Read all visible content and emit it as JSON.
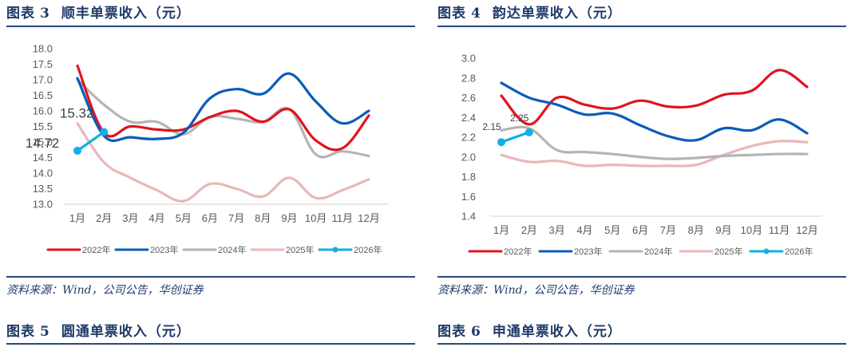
{
  "figures": [
    {
      "label": "图表",
      "number": "3",
      "title": "顺丰单票收入（元）",
      "source": "资料来源：Wind，公司公告，华创证券"
    },
    {
      "label": "图表",
      "number": "4",
      "title": "韵达单票收入（元）",
      "source": "资料来源：Wind，公司公告，华创证券"
    }
  ],
  "next_figures": [
    {
      "label": "图表",
      "number": "5",
      "title": "圆通单票收入（元）"
    },
    {
      "label": "图表",
      "number": "6",
      "title": "申通单票收入（元）"
    }
  ],
  "colors": {
    "2022年": "#e0141e",
    "2023年": "#0a5cb8",
    "2024年": "#b4b4b4",
    "2025年": "#e8b8b8",
    "2026年": "#12aee8",
    "title": "#1f3a68",
    "rule": "#2b4a7a"
  },
  "chart_data": [
    {
      "type": "line",
      "title": "顺丰单票收入（元）",
      "categories": [
        "1月",
        "2月",
        "3月",
        "4月",
        "5月",
        "6月",
        "7月",
        "8月",
        "9月",
        "10月",
        "11月",
        "12月"
      ],
      "ylim": [
        13.0,
        18.0
      ],
      "yticks": [
        "18.0",
        "17.5",
        "17.0",
        "16.5",
        "16.0",
        "15.5",
        "15.0",
        "14.5",
        "14.0",
        "13.5",
        "13.0"
      ],
      "legend_position": "bottom",
      "grid": false,
      "series": [
        {
          "name": "2022年",
          "values": [
            17.45,
            15.3,
            15.5,
            15.4,
            15.4,
            15.8,
            16.0,
            15.65,
            16.05,
            15.05,
            14.8,
            15.85
          ]
        },
        {
          "name": "2023年",
          "values": [
            17.05,
            15.2,
            15.15,
            15.1,
            15.3,
            16.4,
            16.7,
            16.55,
            17.2,
            16.3,
            15.6,
            16.0
          ]
        },
        {
          "name": "2024年",
          "values": [
            17.0,
            16.2,
            15.65,
            15.65,
            15.25,
            15.8,
            15.75,
            15.65,
            16.05,
            14.6,
            14.7,
            14.55
          ]
        },
        {
          "name": "2025年",
          "values": [
            15.6,
            14.35,
            13.85,
            13.45,
            13.1,
            13.65,
            13.5,
            13.25,
            13.85,
            13.2,
            13.45,
            13.8
          ]
        },
        {
          "name": "2026年",
          "values": [
            14.72,
            15.32
          ],
          "data_labels": [
            "14.72",
            "15.32"
          ],
          "markers": true
        }
      ]
    },
    {
      "type": "line",
      "title": "韵达单票收入（元）",
      "categories": [
        "1月",
        "2月",
        "3月",
        "4月",
        "5月",
        "6月",
        "7月",
        "8月",
        "9月",
        "10月",
        "11月",
        "12月"
      ],
      "ylim": [
        1.4,
        3.0
      ],
      "yticks": [
        "3.0",
        "2.8",
        "2.6",
        "2.4",
        "2.2",
        "2.0",
        "1.8",
        "1.6",
        "1.4"
      ],
      "legend_position": "bottom",
      "grid": false,
      "series": [
        {
          "name": "2022年",
          "values": [
            2.62,
            2.33,
            2.6,
            2.53,
            2.49,
            2.57,
            2.51,
            2.52,
            2.63,
            2.67,
            2.88,
            2.71
          ]
        },
        {
          "name": "2023年",
          "values": [
            2.75,
            2.6,
            2.53,
            2.43,
            2.44,
            2.32,
            2.21,
            2.17,
            2.29,
            2.27,
            2.38,
            2.24
          ]
        },
        {
          "name": "2024年",
          "values": [
            2.27,
            2.29,
            2.07,
            2.05,
            2.03,
            2.0,
            1.98,
            1.99,
            2.01,
            2.02,
            2.03,
            2.03
          ]
        },
        {
          "name": "2025年",
          "values": [
            2.02,
            1.95,
            1.96,
            1.91,
            1.92,
            1.91,
            1.91,
            1.92,
            2.02,
            2.11,
            2.16,
            2.15
          ]
        },
        {
          "name": "2026年",
          "values": [
            2.15,
            2.25
          ],
          "data_labels": [
            "2.15",
            "2.25"
          ],
          "markers": true
        }
      ]
    }
  ]
}
